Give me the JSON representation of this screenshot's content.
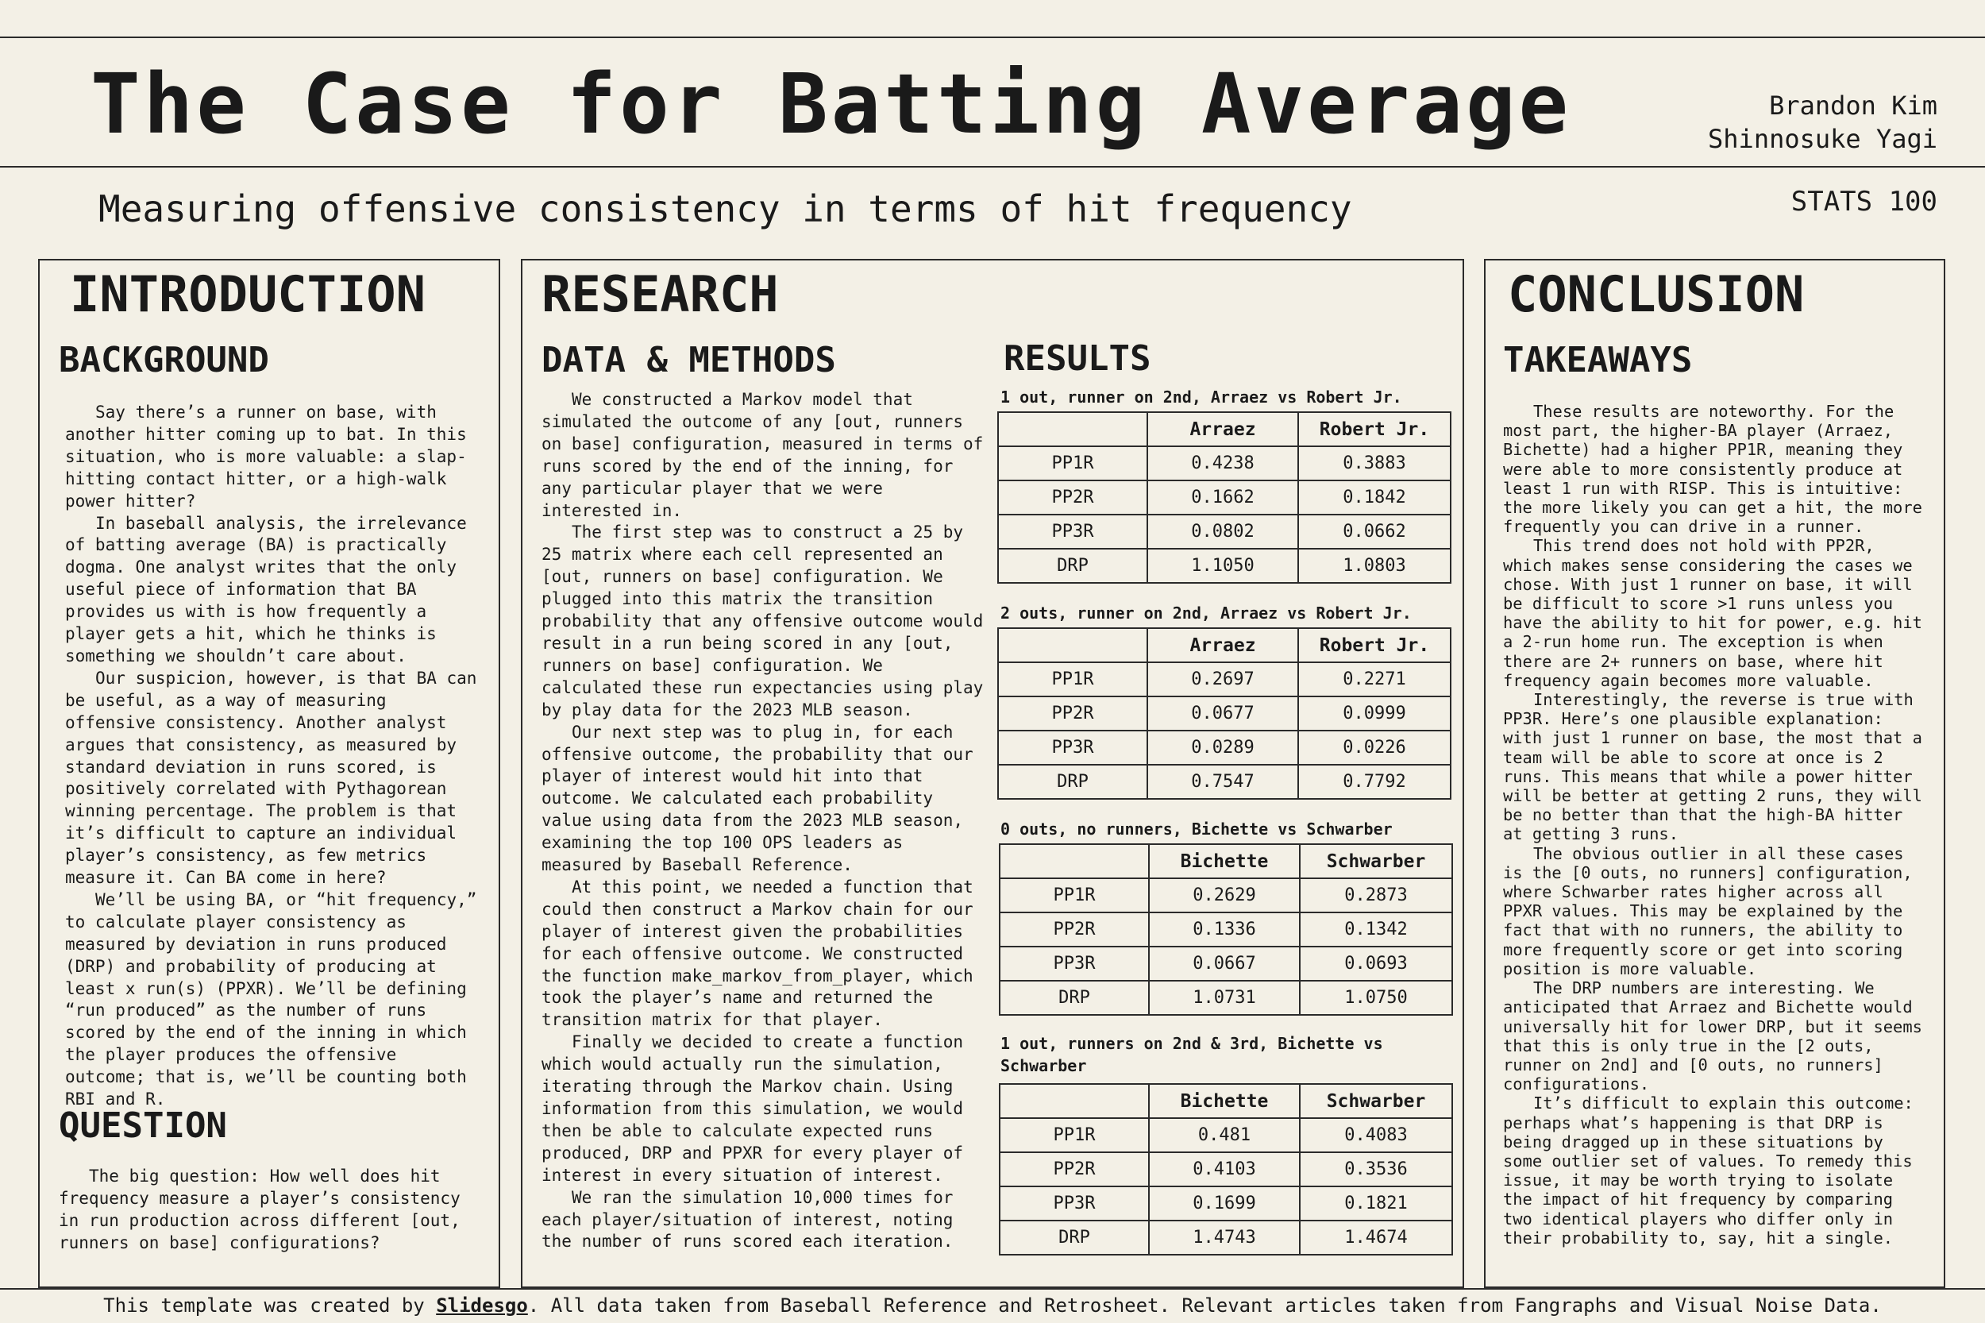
{
  "header": {
    "title": "The Case for Batting Average",
    "authors": [
      "Brandon Kim",
      "Shinnosuke Yagi"
    ],
    "subtitle": "Measuring offensive consistency in terms of hit frequency",
    "course": "STATS 100"
  },
  "intro": {
    "heading": "INTRODUCTION",
    "background_heading": "BACKGROUND",
    "background_paragraphs": [
      "Say there’s a runner on base, with another hitter coming up to bat. In this situation, who is more valuable: a slap-hitting contact hitter, or a high-walk power hitter?",
      "In baseball analysis, the irrelevance of batting average (BA) is practically dogma. One analyst writes that the only useful piece of information that BA provides us with is how frequently a player gets a hit, which he thinks is something we shouldn’t care about.",
      "Our suspicion, however, is that BA can be useful, as a way of measuring offensive consistency. Another analyst argues that consistency, as measured by standard deviation in runs scored, is positively correlated with Pythagorean winning percentage. The problem is that it’s difficult to capture an individual player’s consistency, as few metrics measure it. Can BA come in here?",
      "We’ll be using BA, or “hit frequency,” to calculate player consistency as measured by  deviation in runs produced (DRP) and probability of producing at least x run(s) (PPXR). We’ll be defining “run produced” as the number of runs scored by the end of the inning in which the player produces the offensive outcome; that is, we’ll be counting both RBI and R."
    ],
    "question_heading": "QUESTION",
    "question_text": "The big question: How well does hit frequency measure a player’s consistency in run production across different [out, runners on base] configurations?"
  },
  "research": {
    "heading": "RESEARCH",
    "methods_heading": "DATA & METHODS",
    "methods_paragraphs": [
      "We constructed a Markov model that simulated the outcome of any [out, runners on base] configuration, measured in terms of runs scored by the end of the inning, for any particular player that we were interested in.",
      "The first step was to construct a 25 by 25 matrix where each cell represented an [out, runners on base] configuration. We plugged into this matrix the transition probability that any offensive outcome would result in a run being scored in any [out, runners on base] configuration. We calculated these run expectancies using play by play data for the 2023 MLB season.",
      "Our next step was to plug in, for each offensive outcome, the probability that our player of interest would hit into that outcome. We calculated each probability value using data from the 2023 MLB season, examining the top 100 OPS leaders as measured by Baseball Reference.",
      "At this point, we needed a function that could then construct a Markov chain for our player of interest given the probabilities for each offensive outcome. We constructed the function make_markov_from_player, which took the player’s name and returned the transition matrix for that player.",
      "Finally we decided to create a function which would actually run the simulation, iterating through the Markov chain. Using information from this simulation, we would then be able to calculate expected runs produced, DRP and PPXR for every player of interest in every situation of interest.",
      "We ran the simulation 10,000 times for each player/situation of interest, noting the number of runs scored each iteration."
    ],
    "results_heading": "RESULTS",
    "tables": [
      {
        "caption": "1 out, runner on 2nd, Arraez vs Robert Jr.",
        "columns": [
          "",
          "Arraez",
          "Robert Jr."
        ],
        "rows": [
          [
            "PP1R",
            "0.4238",
            "0.3883"
          ],
          [
            "PP2R",
            "0.1662",
            "0.1842"
          ],
          [
            "PP3R",
            "0.0802",
            "0.0662"
          ],
          [
            "DRP",
            "1.1050",
            "1.0803"
          ]
        ]
      },
      {
        "caption": "2 outs, runner on 2nd, Arraez vs Robert Jr.",
        "columns": [
          "",
          "Arraez",
          "Robert Jr."
        ],
        "rows": [
          [
            "PP1R",
            "0.2697",
            "0.2271"
          ],
          [
            "PP2R",
            "0.0677",
            "0.0999"
          ],
          [
            "PP3R",
            "0.0289",
            "0.0226"
          ],
          [
            "DRP",
            "0.7547",
            "0.7792"
          ]
        ]
      },
      {
        "caption": "0 outs, no runners, Bichette vs Schwarber",
        "columns": [
          "",
          "Bichette",
          "Schwarber"
        ],
        "rows": [
          [
            "PP1R",
            "0.2629",
            "0.2873"
          ],
          [
            "PP2R",
            "0.1336",
            "0.1342"
          ],
          [
            "PP3R",
            "0.0667",
            "0.0693"
          ],
          [
            "DRP",
            "1.0731",
            "1.0750"
          ]
        ]
      },
      {
        "caption": "1 out, runners on 2nd & 3rd, Bichette vs Schwarber",
        "columns": [
          "",
          "Bichette",
          "Schwarber"
        ],
        "rows": [
          [
            "PP1R",
            "0.481",
            "0.4083"
          ],
          [
            "PP2R",
            "0.4103",
            "0.3536"
          ],
          [
            "PP3R",
            "0.1699",
            "0.1821"
          ],
          [
            "DRP",
            "1.4743",
            "1.4674"
          ]
        ]
      }
    ]
  },
  "conclusion": {
    "heading": "CONCLUSION",
    "takeaways_heading": "TAKEAWAYS",
    "paragraphs": [
      "These results are noteworthy. For the most part, the higher-BA player (Arraez, Bichette) had a higher PP1R, meaning they were able to more consistently produce at least 1 run with RISP. This is intuitive: the more likely you can get a hit, the more frequently you can drive in a runner.",
      "This trend does not hold with PP2R, which makes sense considering the cases we chose. With just 1 runner on base, it will be difficult to score >1 runs unless you have the ability to hit for power, e.g. hit a 2-run home run. The exception is when there are 2+ runners on base, where hit frequency again becomes more valuable.",
      "Interestingly, the reverse is true with PP3R. Here’s one plausible explanation: with just 1 runner on base, the most that a team will be able to score at once is 2 runs. This means that while a power hitter will be better at getting 2 runs, they will be no better than that the high-BA hitter at getting 3 runs.",
      "The obvious outlier in all these cases is the [0 outs, no runners] configuration, where Schwarber rates higher across all PPXR values. This may be explained by the fact that with no runners, the ability to more frequently score or get into scoring position is more valuable.",
      "The DRP numbers are interesting. We anticipated that Arraez and Bichette would universally hit for lower DRP, but it seems that this is only true in the [2 outs, runner on 2nd] and [0 outs, no runners] configurations.",
      "It’s difficult to explain this outcome: perhaps what’s happening is that DRP is being dragged up in these situations by some outlier set of values. To remedy this issue, it may be worth trying to isolate the impact of hit frequency by comparing two identical players who differ only in their probability to, say, hit a single."
    ]
  },
  "footer": {
    "prefix": "This template was created by ",
    "link": "Slidesgo",
    "suffix": ". All data taken from Baseball Reference and Retrosheet. Relevant articles taken from Fangraphs and Visual Noise Data."
  }
}
